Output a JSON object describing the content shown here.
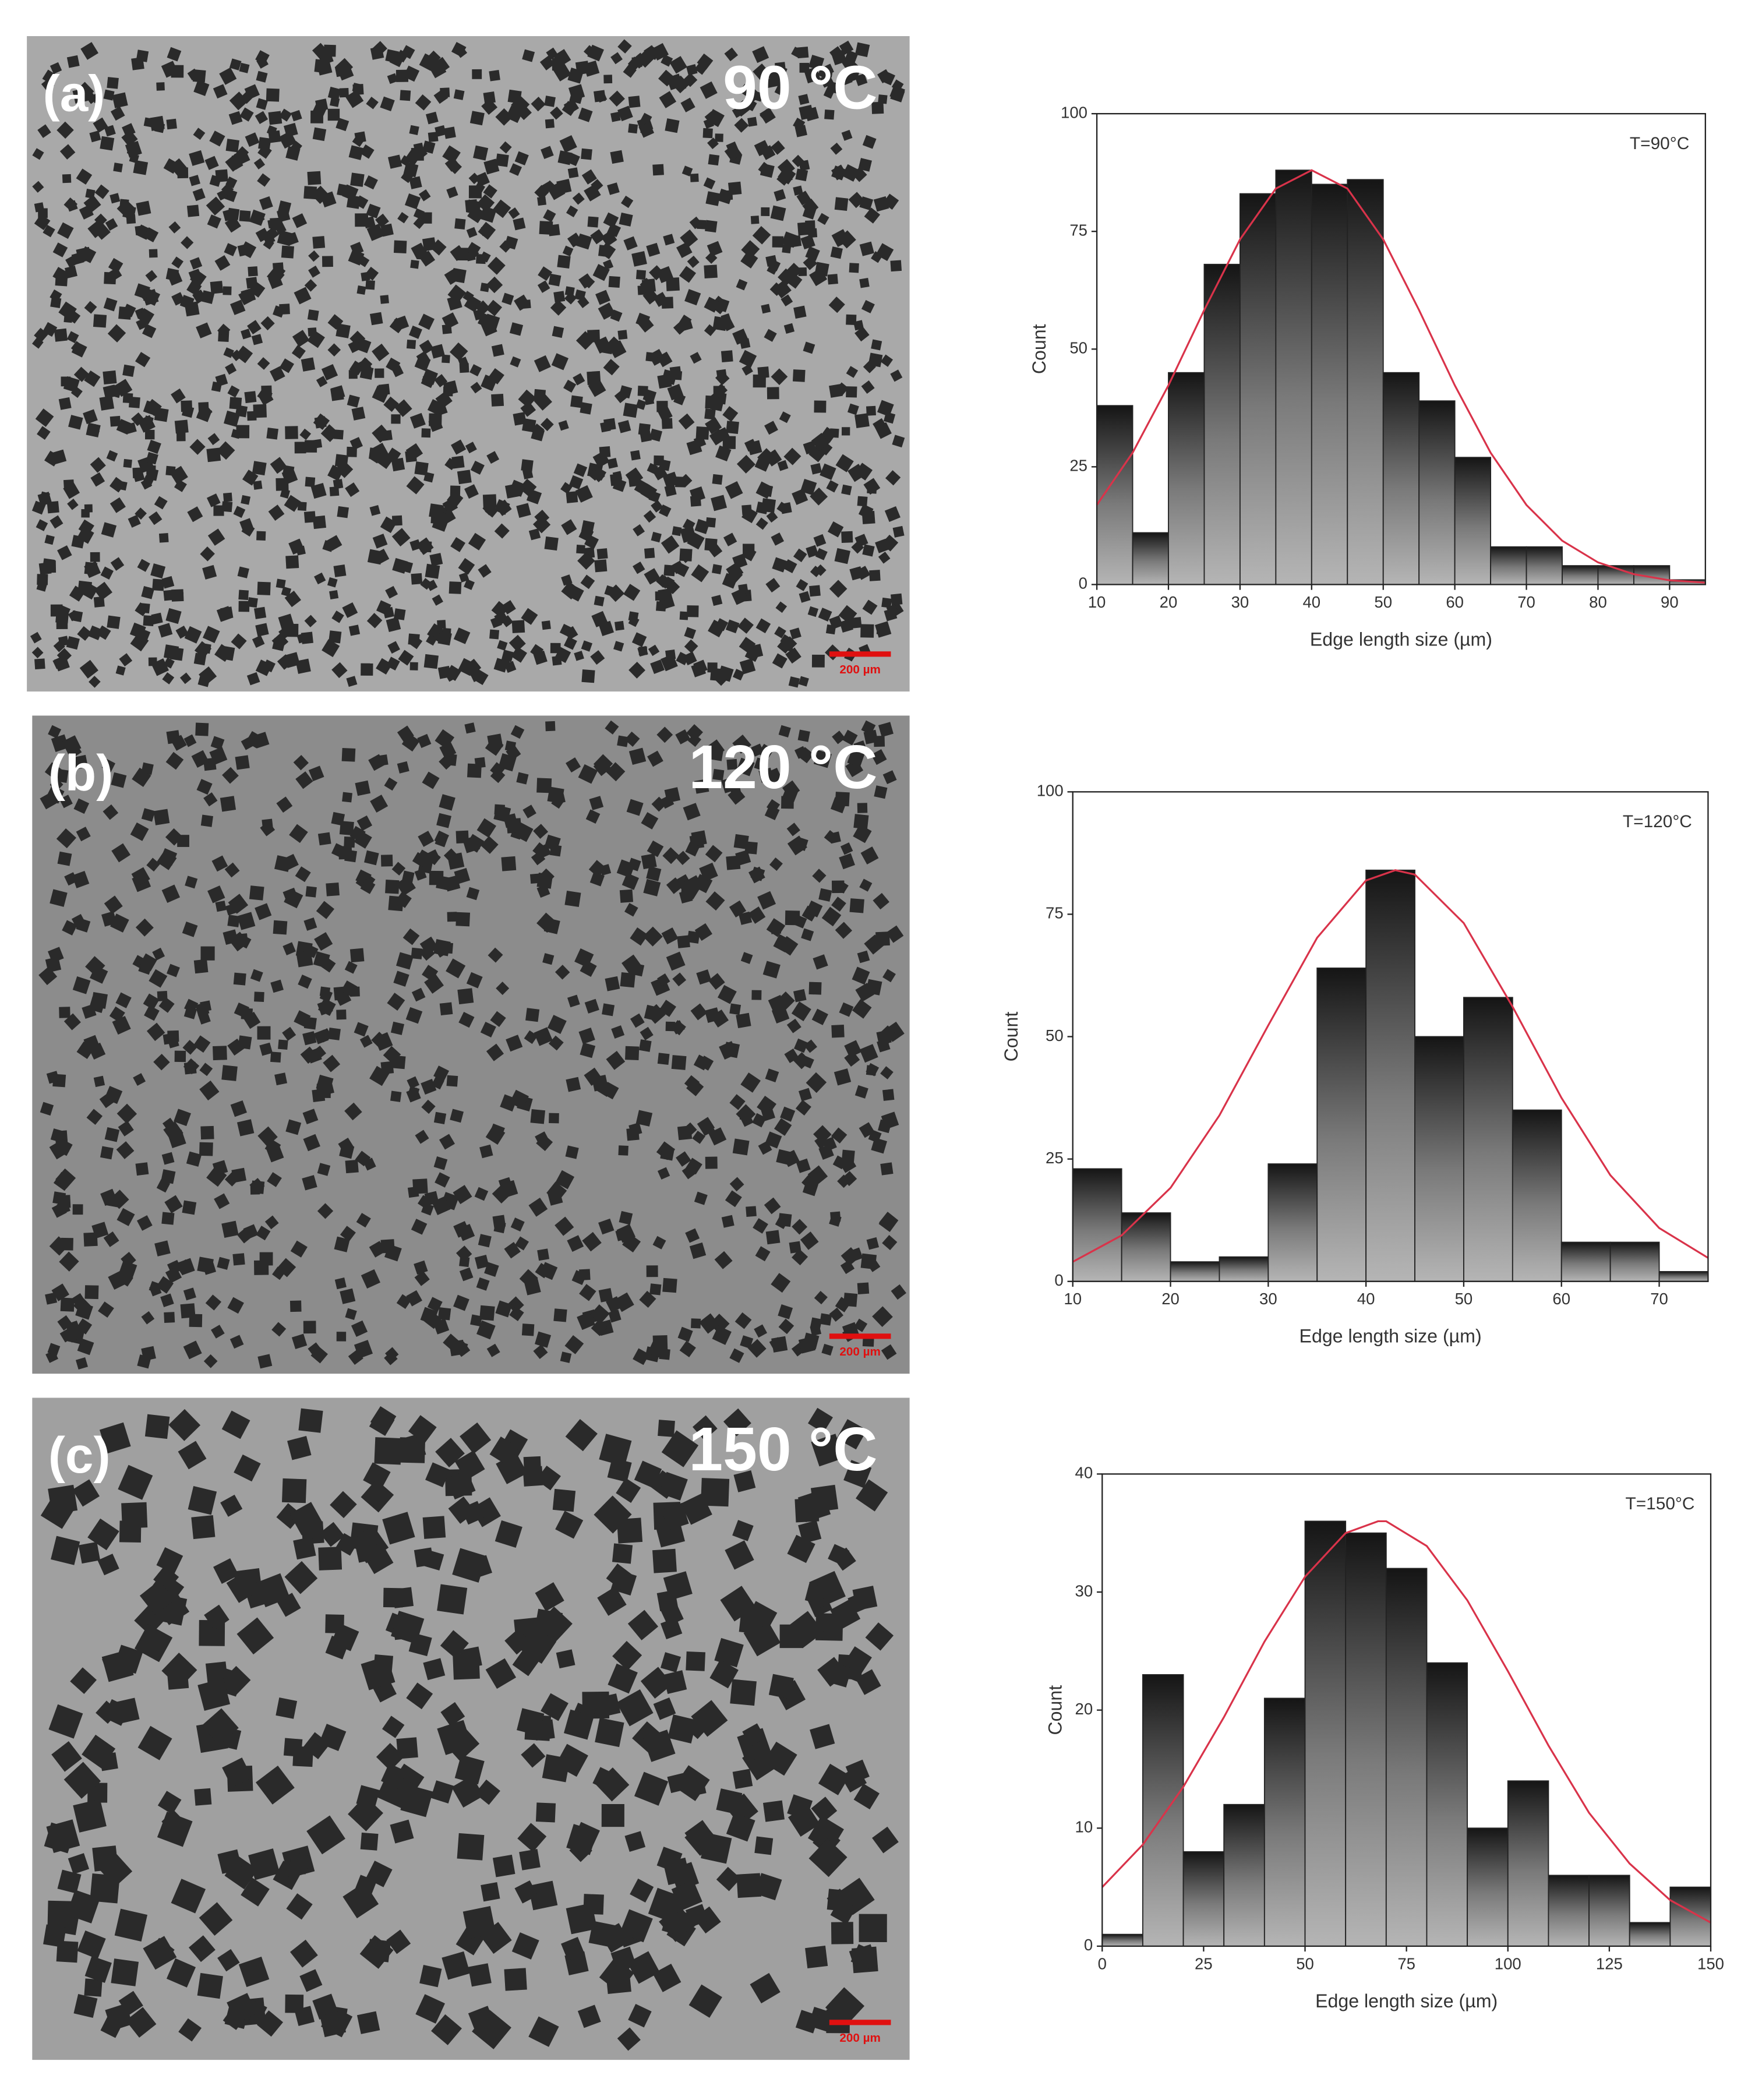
{
  "panels": [
    {
      "label": "(a)",
      "temperature": "90 °C",
      "scale_bar": "200 µm"
    },
    {
      "label": "(b)",
      "temperature": "120 °C",
      "scale_bar": "200 µm"
    },
    {
      "label": "(c)",
      "temperature": "150 °C",
      "scale_bar": "200 µm"
    }
  ],
  "chart_data": [
    {
      "type": "histogram",
      "annotation": "T=90°C",
      "xlabel": "Edge length size (µm)",
      "ylabel": "Count",
      "bins": [
        10,
        15,
        20,
        25,
        30,
        35,
        40,
        45,
        50,
        55,
        60,
        65,
        70,
        75,
        80,
        85,
        90,
        95
      ],
      "values": [
        38,
        11,
        45,
        68,
        83,
        88,
        85,
        86,
        45,
        39,
        27,
        8,
        8,
        4,
        4,
        4,
        1
      ],
      "edgecolor": "#222222",
      "xlim": [
        10,
        95
      ],
      "xticks": [
        10,
        20,
        30,
        40,
        50,
        60,
        70,
        80,
        90
      ],
      "ylim": [
        0,
        100
      ],
      "yticks": [
        0,
        25,
        50,
        75,
        100
      ],
      "fit": {
        "color": "#d9334a",
        "x": [
          10,
          15,
          20,
          25,
          30,
          35,
          40,
          45,
          50,
          55,
          60,
          65,
          70,
          75,
          80,
          85,
          90,
          95
        ],
        "values": [
          16.9,
          28.0,
          42.3,
          58.3,
          73.3,
          84.1,
          88,
          84.1,
          73.3,
          58.3,
          42.3,
          28.0,
          16.9,
          9.3,
          4.7,
          2.2,
          0.9,
          0.4
        ]
      }
    },
    {
      "type": "histogram",
      "annotation": "T=120°C",
      "xlabel": "Edge length size (µm)",
      "ylabel": "Count",
      "bins": [
        10,
        15,
        20,
        25,
        30,
        35,
        40,
        45,
        50,
        55,
        60,
        65,
        70,
        75
      ],
      "values": [
        23,
        14,
        4,
        5,
        24,
        64,
        84,
        50,
        58,
        35,
        8,
        8,
        2
      ],
      "edgecolor": "#222222",
      "xlim": [
        10,
        75
      ],
      "xticks": [
        10,
        20,
        30,
        40,
        50,
        60,
        70
      ],
      "ylim": [
        0,
        100
      ],
      "yticks": [
        0,
        25,
        50,
        75,
        100
      ],
      "fit": {
        "color": "#d9334a",
        "x": [
          10,
          15,
          20,
          25,
          30,
          35,
          40,
          43,
          45,
          50,
          55,
          60,
          65,
          70,
          75
        ],
        "values": [
          4.0,
          9.4,
          19.1,
          33.9,
          52.3,
          70.2,
          81.9,
          84,
          83.1,
          73.2,
          56.1,
          37.5,
          21.7,
          10.9,
          4.8
        ]
      }
    },
    {
      "type": "histogram",
      "annotation": "T=150°C",
      "xlabel": "Edge length size (µm)",
      "ylabel": "Count",
      "bins": [
        0,
        10,
        20,
        30,
        40,
        50,
        60,
        70,
        80,
        90,
        100,
        110,
        120,
        130,
        140,
        150
      ],
      "values": [
        1,
        23,
        8,
        12,
        21,
        36,
        35,
        32,
        24,
        10,
        14,
        6,
        6,
        2,
        5
      ],
      "edgecolor": "#222222",
      "xlim": [
        0,
        150
      ],
      "xticks": [
        0,
        25,
        50,
        75,
        100,
        125,
        150
      ],
      "ylim": [
        0,
        40
      ],
      "yticks": [
        0,
        10,
        20,
        30,
        40
      ],
      "fit": {
        "color": "#d9334a",
        "x": [
          0,
          10,
          20,
          30,
          40,
          50,
          60,
          68,
          70,
          80,
          90,
          100,
          110,
          120,
          130,
          140,
          150
        ],
        "values": [
          5.0,
          8.6,
          13.5,
          19.4,
          25.8,
          31.3,
          35.0,
          36,
          36.0,
          33.9,
          29.3,
          23.3,
          17.0,
          11.3,
          7.0,
          3.9,
          2.0
        ]
      }
    }
  ]
}
